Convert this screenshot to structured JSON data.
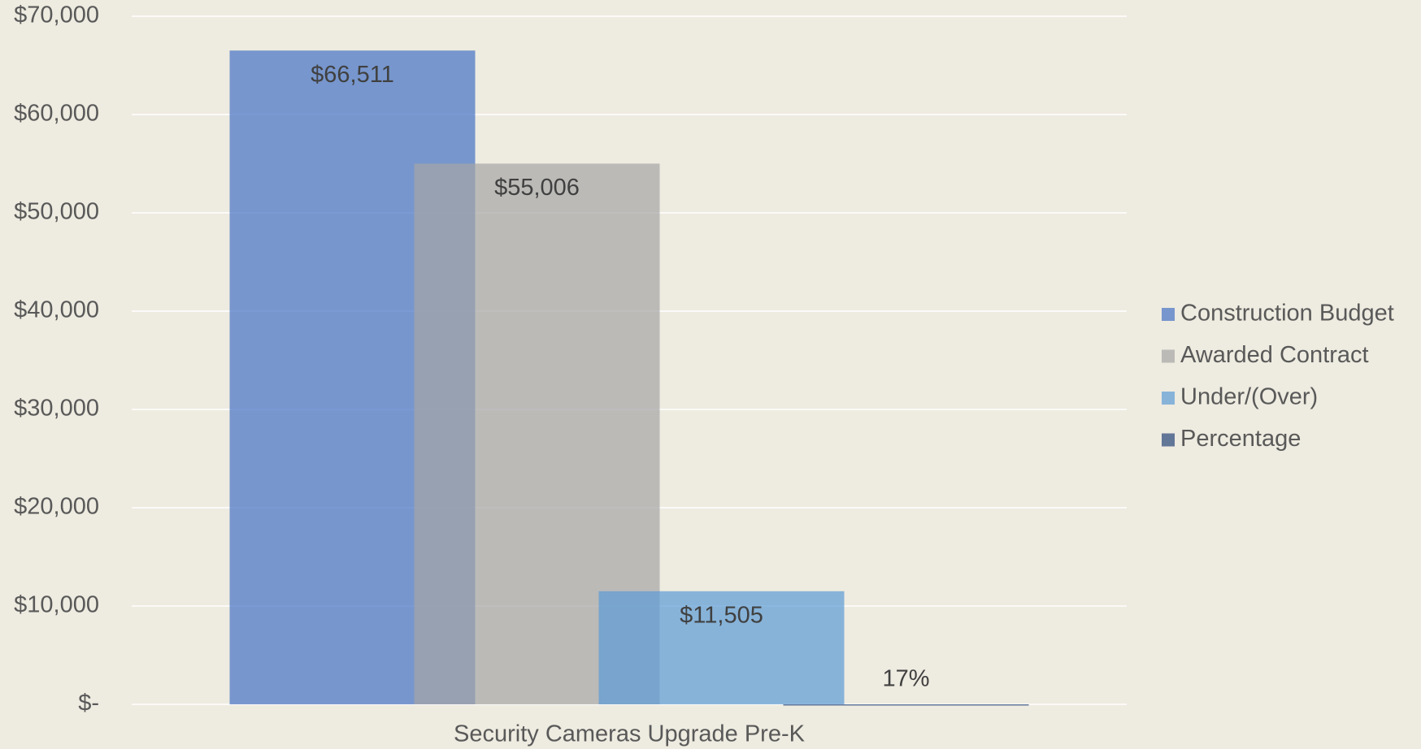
{
  "chart_data": {
    "type": "bar",
    "categories": [
      "Security Cameras Upgrade Pre-K"
    ],
    "series": [
      {
        "name": "Construction Budget",
        "color": "#4472c4",
        "values": [
          66511
        ],
        "value_labels": [
          "$66,511"
        ]
      },
      {
        "name": "Awarded Contract",
        "color": "#a5a5a5",
        "values": [
          55006
        ],
        "value_labels": [
          "$55,006"
        ]
      },
      {
        "name": "Under/(Over)",
        "color": "#5b9bd5",
        "values": [
          11505
        ],
        "value_labels": [
          "$11,505"
        ]
      },
      {
        "name": "Percentage",
        "color": "#264478",
        "values": [
          0.17
        ],
        "value_labels": [
          "17%"
        ]
      }
    ],
    "ylim": [
      0,
      70000
    ],
    "yticks": [
      {
        "value": 0,
        "label": "$-"
      },
      {
        "value": 10000,
        "label": "$10,000"
      },
      {
        "value": 20000,
        "label": "$20,000"
      },
      {
        "value": 30000,
        "label": "$30,000"
      },
      {
        "value": 40000,
        "label": "$40,000"
      },
      {
        "value": 50000,
        "label": "$50,000"
      },
      {
        "value": 60000,
        "label": "$60,000"
      },
      {
        "value": 70000,
        "label": "$70,000"
      }
    ],
    "grid": true,
    "legend": "right"
  }
}
